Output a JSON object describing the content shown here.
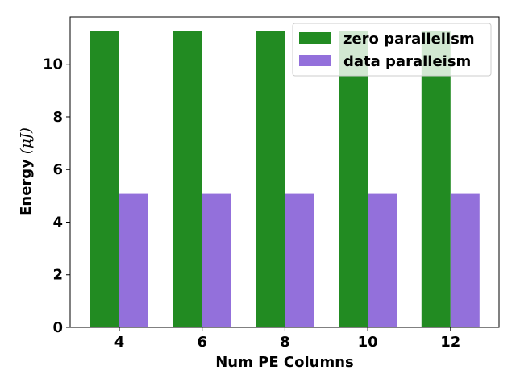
{
  "chart_data": {
    "type": "bar",
    "categories": [
      "4",
      "6",
      "8",
      "10",
      "12"
    ],
    "series": [
      {
        "name": "zero parallelism",
        "values": [
          11.25,
          11.25,
          11.25,
          11.25,
          11.25
        ],
        "color": "#228b22"
      },
      {
        "name": "data paralleism",
        "values": [
          5.07,
          5.07,
          5.07,
          5.07,
          5.07
        ],
        "color": "#9370db"
      }
    ],
    "title": "",
    "xlabel": "Num PE Columns",
    "ylabel": "Energy",
    "ylabel_unit": "(μJ)",
    "ylim": [
      0,
      11.8
    ],
    "yticks": [
      "0",
      "2",
      "4",
      "6",
      "8",
      "10"
    ],
    "grid": false,
    "legend_position": "top-right"
  }
}
